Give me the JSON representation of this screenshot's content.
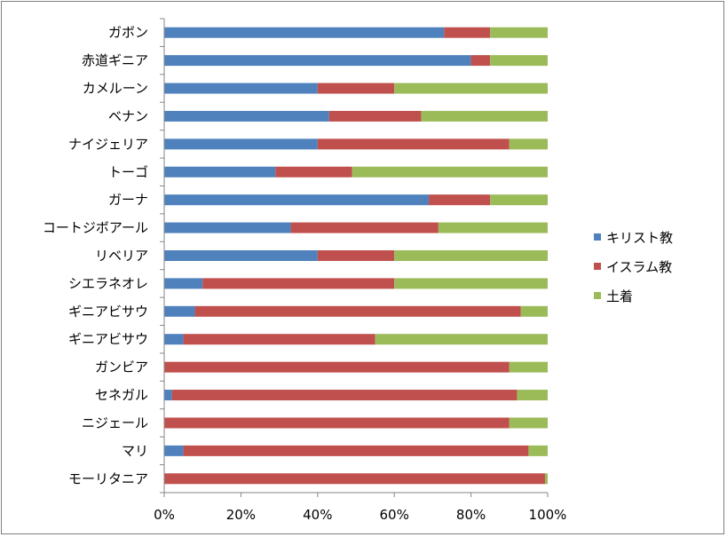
{
  "chart_data": {
    "type": "bar",
    "orientation": "horizontal",
    "stacked": "percent",
    "categories": [
      "ガボン",
      "赤道ギニア",
      "カメルーン",
      "ベナン",
      "ナイジェリア",
      "トーゴ",
      "ガーナ",
      "コートジボアール",
      "リベリア",
      "シエラネオレ",
      "ギニアビサウ",
      "ギニアビサウ",
      "ガンビア",
      "セネガル",
      "ニジェール",
      "マリ",
      "モーリタニア"
    ],
    "series": [
      {
        "name": "キリスト教",
        "color": "#4f81bd",
        "values": [
          73,
          80,
          40,
          43,
          40,
          29,
          69,
          33,
          40,
          10,
          8,
          5,
          0,
          2,
          0,
          5,
          0
        ]
      },
      {
        "name": "イスラム教",
        "color": "#c0504d",
        "values": [
          12,
          5,
          20,
          24,
          50,
          20,
          16,
          38.5,
          20,
          50,
          85,
          50,
          90,
          90,
          90,
          90,
          99.3
        ]
      },
      {
        "name": "土着",
        "color": "#9bbb59",
        "values": [
          15,
          15,
          40,
          33,
          10,
          51,
          15,
          28.5,
          40,
          40,
          7,
          45,
          10,
          8,
          10,
          5,
          0.7
        ]
      }
    ],
    "xlim": [
      0,
      100
    ],
    "xticks": [
      "0%",
      "20%",
      "40%",
      "60%",
      "80%",
      "100%"
    ],
    "grid": false,
    "legend": "right"
  }
}
